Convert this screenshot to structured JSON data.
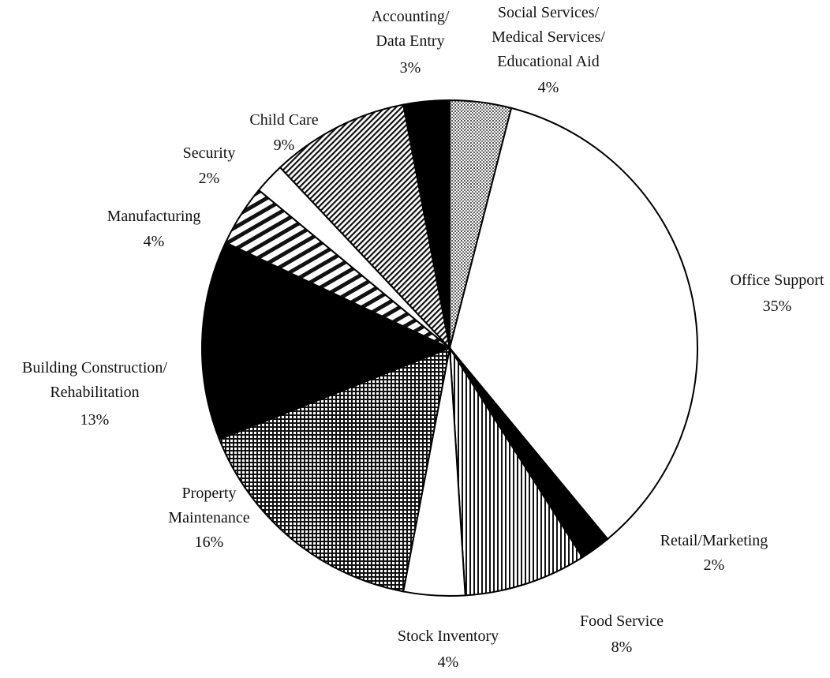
{
  "chart_data": {
    "type": "pie",
    "categories": [
      "Social Services/\nMedical Services/\nEducational Aid",
      "Office Support",
      "Retail/Marketing",
      "Food Service",
      "Stock Inventory",
      "Property\nMaintenance",
      "Building Construction/\nRehabilitation",
      "Manufacturing",
      "Security",
      "Child Care",
      "Accounting/\nData Entry"
    ],
    "values": [
      4,
      35,
      2,
      8,
      4,
      16,
      13,
      4,
      2,
      9,
      3
    ],
    "value_labels": [
      "4%",
      "35%",
      "2%",
      "8%",
      "4%",
      "16%",
      "13%",
      "4%",
      "2%",
      "9%",
      "3%"
    ],
    "fills": [
      "dots",
      "white",
      "black",
      "vertical",
      "white",
      "crosshatch",
      "black",
      "stripes",
      "white",
      "hatch",
      "black"
    ]
  }
}
